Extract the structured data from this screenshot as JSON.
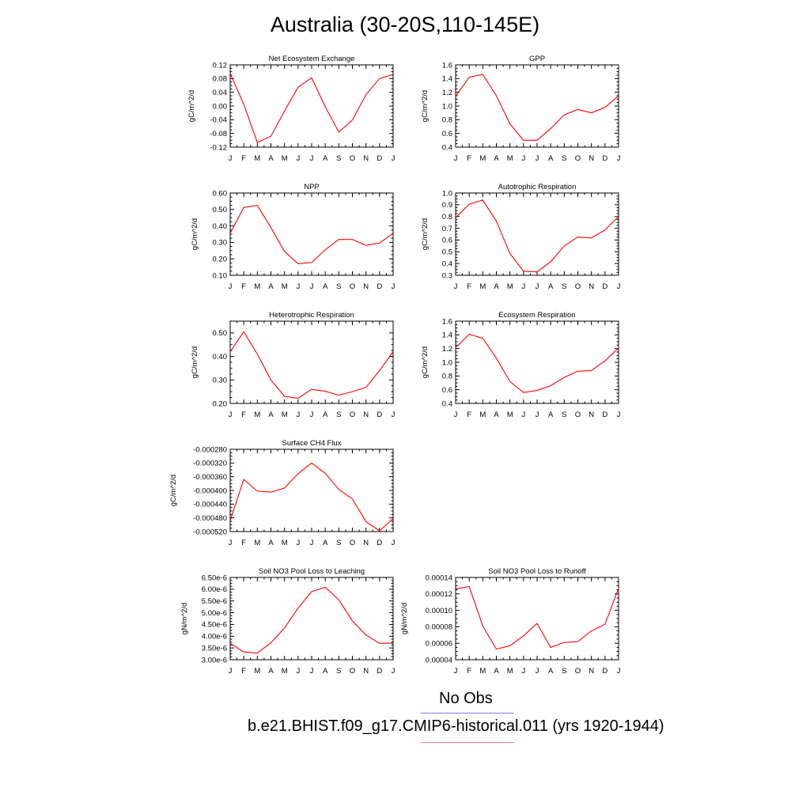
{
  "page": {
    "title": "Australia (30-20S,110-145E)",
    "legend_obs": "No Obs",
    "legend_case": "b.e21.BHIST.f09_g17.CMIP6-historical.011 (yrs 1920-1944)",
    "line_color": "#ff0000",
    "obs_color": "#7b7bff"
  },
  "chart_data": [
    {
      "type": "line",
      "title": "Net Ecosystem Exchange",
      "ylabel": "gC/m^2/d",
      "x": [
        "J",
        "F",
        "M",
        "A",
        "M",
        "J",
        "J",
        "A",
        "S",
        "O",
        "N",
        "D",
        "J"
      ],
      "ylim": [
        -0.12,
        0.12
      ],
      "yticks": [
        "-0.12",
        "-0.08",
        "-0.04",
        "0.00",
        "0.04",
        "0.08",
        "0.12"
      ],
      "yticks_values": [
        -0.12,
        -0.08,
        -0.04,
        0.0,
        0.04,
        0.08,
        0.12
      ],
      "values": [
        0.095,
        0.005,
        -0.107,
        -0.088,
        -0.015,
        0.055,
        0.082,
        -0.002,
        -0.076,
        -0.041,
        0.033,
        0.08,
        0.092
      ]
    },
    {
      "type": "line",
      "title": "GPP",
      "ylabel": "gC/m^2/d",
      "x": [
        "J",
        "F",
        "M",
        "A",
        "M",
        "J",
        "J",
        "A",
        "S",
        "O",
        "N",
        "D",
        "J"
      ],
      "ylim": [
        0.4,
        1.6
      ],
      "yticks": [
        "0.4",
        "0.6",
        "0.8",
        "1.0",
        "1.2",
        "1.4",
        "1.6"
      ],
      "yticks_values": [
        0.4,
        0.6,
        0.8,
        1.0,
        1.2,
        1.4,
        1.6
      ],
      "values": [
        1.14,
        1.42,
        1.46,
        1.15,
        0.74,
        0.5,
        0.5,
        0.67,
        0.87,
        0.95,
        0.9,
        0.98,
        1.15
      ]
    },
    {
      "type": "line",
      "title": "NPP",
      "ylabel": "gC/m^2/d",
      "x": [
        "J",
        "F",
        "M",
        "A",
        "M",
        "J",
        "J",
        "A",
        "S",
        "O",
        "N",
        "D",
        "J"
      ],
      "ylim": [
        0.1,
        0.6
      ],
      "yticks": [
        "0.10",
        "0.20",
        "0.30",
        "0.40",
        "0.50",
        "0.60"
      ],
      "yticks_values": [
        0.1,
        0.2,
        0.3,
        0.4,
        0.5,
        0.6
      ],
      "values": [
        0.355,
        0.512,
        0.525,
        0.39,
        0.245,
        0.17,
        0.178,
        0.255,
        0.318,
        0.318,
        0.282,
        0.296,
        0.355
      ]
    },
    {
      "type": "line",
      "title": "Autotrophic Respiration",
      "ylabel": "gC/m^2/d",
      "x": [
        "J",
        "F",
        "M",
        "A",
        "M",
        "J",
        "J",
        "A",
        "S",
        "O",
        "N",
        "D",
        "J"
      ],
      "ylim": [
        0.3,
        1.0
      ],
      "yticks": [
        "0.3",
        "0.4",
        "0.5",
        "0.6",
        "0.7",
        "0.8",
        "0.9",
        "1.0"
      ],
      "yticks_values": [
        0.3,
        0.4,
        0.5,
        0.6,
        0.7,
        0.8,
        0.9,
        1.0
      ],
      "values": [
        0.79,
        0.905,
        0.94,
        0.76,
        0.485,
        0.335,
        0.328,
        0.415,
        0.55,
        0.625,
        0.617,
        0.685,
        0.8
      ]
    },
    {
      "type": "line",
      "title": "Heterotrophic Respiration",
      "ylabel": "gC/m^2/d",
      "x": [
        "J",
        "F",
        "M",
        "A",
        "M",
        "J",
        "J",
        "A",
        "S",
        "O",
        "N",
        "D",
        "J"
      ],
      "ylim": [
        0.2,
        0.55
      ],
      "yticks": [
        "0.20",
        "0.30",
        "0.40",
        "0.50"
      ],
      "yticks_values": [
        0.2,
        0.3,
        0.4,
        0.5
      ],
      "values": [
        0.42,
        0.505,
        0.41,
        0.3,
        0.23,
        0.222,
        0.26,
        0.252,
        0.235,
        0.25,
        0.268,
        0.34,
        0.42
      ]
    },
    {
      "type": "line",
      "title": "Ecosystem Respiration",
      "ylabel": "gC/m^2/d",
      "x": [
        "J",
        "F",
        "M",
        "A",
        "M",
        "J",
        "J",
        "A",
        "S",
        "O",
        "N",
        "D",
        "J"
      ],
      "ylim": [
        0.4,
        1.6
      ],
      "yticks": [
        "0.4",
        "0.6",
        "0.8",
        "1.0",
        "1.2",
        "1.4",
        "1.6"
      ],
      "yticks_values": [
        0.4,
        0.6,
        0.8,
        1.0,
        1.2,
        1.4,
        1.6
      ],
      "values": [
        1.21,
        1.41,
        1.35,
        1.06,
        0.72,
        0.56,
        0.59,
        0.66,
        0.78,
        0.87,
        0.88,
        1.02,
        1.21
      ]
    },
    {
      "type": "line",
      "title": "Surface CH4 Flux",
      "ylabel": "gC/m^2/d",
      "x": [
        "J",
        "F",
        "M",
        "A",
        "M",
        "J",
        "J",
        "A",
        "S",
        "O",
        "N",
        "D",
        "J"
      ],
      "ylim": [
        -0.00052,
        -0.00028
      ],
      "yticks": [
        "-0.000520",
        "-0.000480",
        "-0.000440",
        "-0.000400",
        "-0.000360",
        "-0.000320",
        "-0.000280"
      ],
      "yticks_values": [
        -0.00052,
        -0.00048,
        -0.00044,
        -0.0004,
        -0.00036,
        -0.00032,
        -0.00028
      ],
      "values": [
        -0.000488,
        -0.000368,
        -0.000402,
        -0.000405,
        -0.000393,
        -0.000351,
        -0.00032,
        -0.00035,
        -0.000397,
        -0.000425,
        -0.000491,
        -0.000518,
        -0.000482
      ]
    },
    {
      "type": "line",
      "title": "Soil NO3 Pool Loss to Leaching",
      "ylabel": "gN/m^2/d",
      "x": [
        "J",
        "F",
        "M",
        "A",
        "M",
        "J",
        "J",
        "A",
        "S",
        "O",
        "N",
        "D",
        "J"
      ],
      "ylim": [
        3e-06,
        6.5e-06
      ],
      "yticks": [
        "3.00e-6",
        "3.50e-6",
        "4.00e-6",
        "4.50e-6",
        "5.00e-6",
        "5.50e-6",
        "6.00e-6",
        "6.50e-6"
      ],
      "yticks_values": [
        3e-06,
        3.5e-06,
        4e-06,
        4.5e-06,
        5e-06,
        5.5e-06,
        6e-06,
        6.5e-06
      ],
      "values": [
        3.7e-06,
        3.33e-06,
        3.28e-06,
        3.72e-06,
        4.35e-06,
        5.2e-06,
        5.9e-06,
        6.08e-06,
        5.55e-06,
        4.65e-06,
        4.05e-06,
        3.7e-06,
        3.7e-06
      ]
    },
    {
      "type": "line",
      "title": "Soil NO3 Pool Loss to Runoff",
      "ylabel": "gN/m^2/d",
      "x": [
        "J",
        "F",
        "M",
        "A",
        "M",
        "J",
        "J",
        "A",
        "S",
        "O",
        "N",
        "D",
        "J"
      ],
      "ylim": [
        4e-05,
        0.00014
      ],
      "yticks": [
        "0.00004",
        "0.00006",
        "0.00008",
        "0.00010",
        "0.00012",
        "0.00014"
      ],
      "yticks_values": [
        4e-05,
        6e-05,
        8e-05,
        0.0001,
        0.00012,
        0.00014
      ],
      "values": [
        0.000126,
        0.000129,
        8.1e-05,
        5.3e-05,
        5.7e-05,
        6.9e-05,
        8.4e-05,
        5.5e-05,
        6.1e-05,
        6.2e-05,
        7.5e-05,
        8.3e-05,
        0.000127
      ]
    }
  ]
}
